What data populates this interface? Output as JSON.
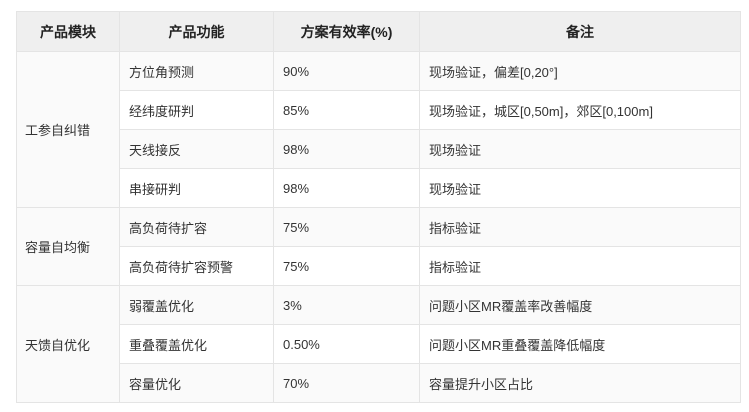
{
  "headers": [
    "产品模块",
    "产品功能",
    "方案有效率(%)",
    "备注"
  ],
  "groups": [
    {
      "module": "工参自纠错",
      "rows": [
        {
          "func": "方位角预测",
          "rate": "90%",
          "note": "现场验证，偏差[0,20°]"
        },
        {
          "func": "经纬度研判",
          "rate": "85%",
          "note": "现场验证，城区[0,50m]，郊区[0,100m]"
        },
        {
          "func": "天线接反",
          "rate": "98%",
          "note": "现场验证"
        },
        {
          "func": "串接研判",
          "rate": "98%",
          "note": "现场验证"
        }
      ]
    },
    {
      "module": "容量自均衡",
      "rows": [
        {
          "func": "高负荷待扩容",
          "rate": "75%",
          "note": "指标验证"
        },
        {
          "func": "高负荷待扩容预警",
          "rate": "75%",
          "note": "指标验证"
        }
      ]
    },
    {
      "module": "天馈自优化",
      "rows": [
        {
          "func": "弱覆盖优化",
          "rate": "3%",
          "note": "问题小区MR覆盖率改善幅度"
        },
        {
          "func": "重叠覆盖优化",
          "rate": "0.50%",
          "note": "问题小区MR重叠覆盖降低幅度"
        },
        {
          "func": "容量优化",
          "rate": "70%",
          "note": "容量提升小区占比"
        }
      ]
    }
  ]
}
